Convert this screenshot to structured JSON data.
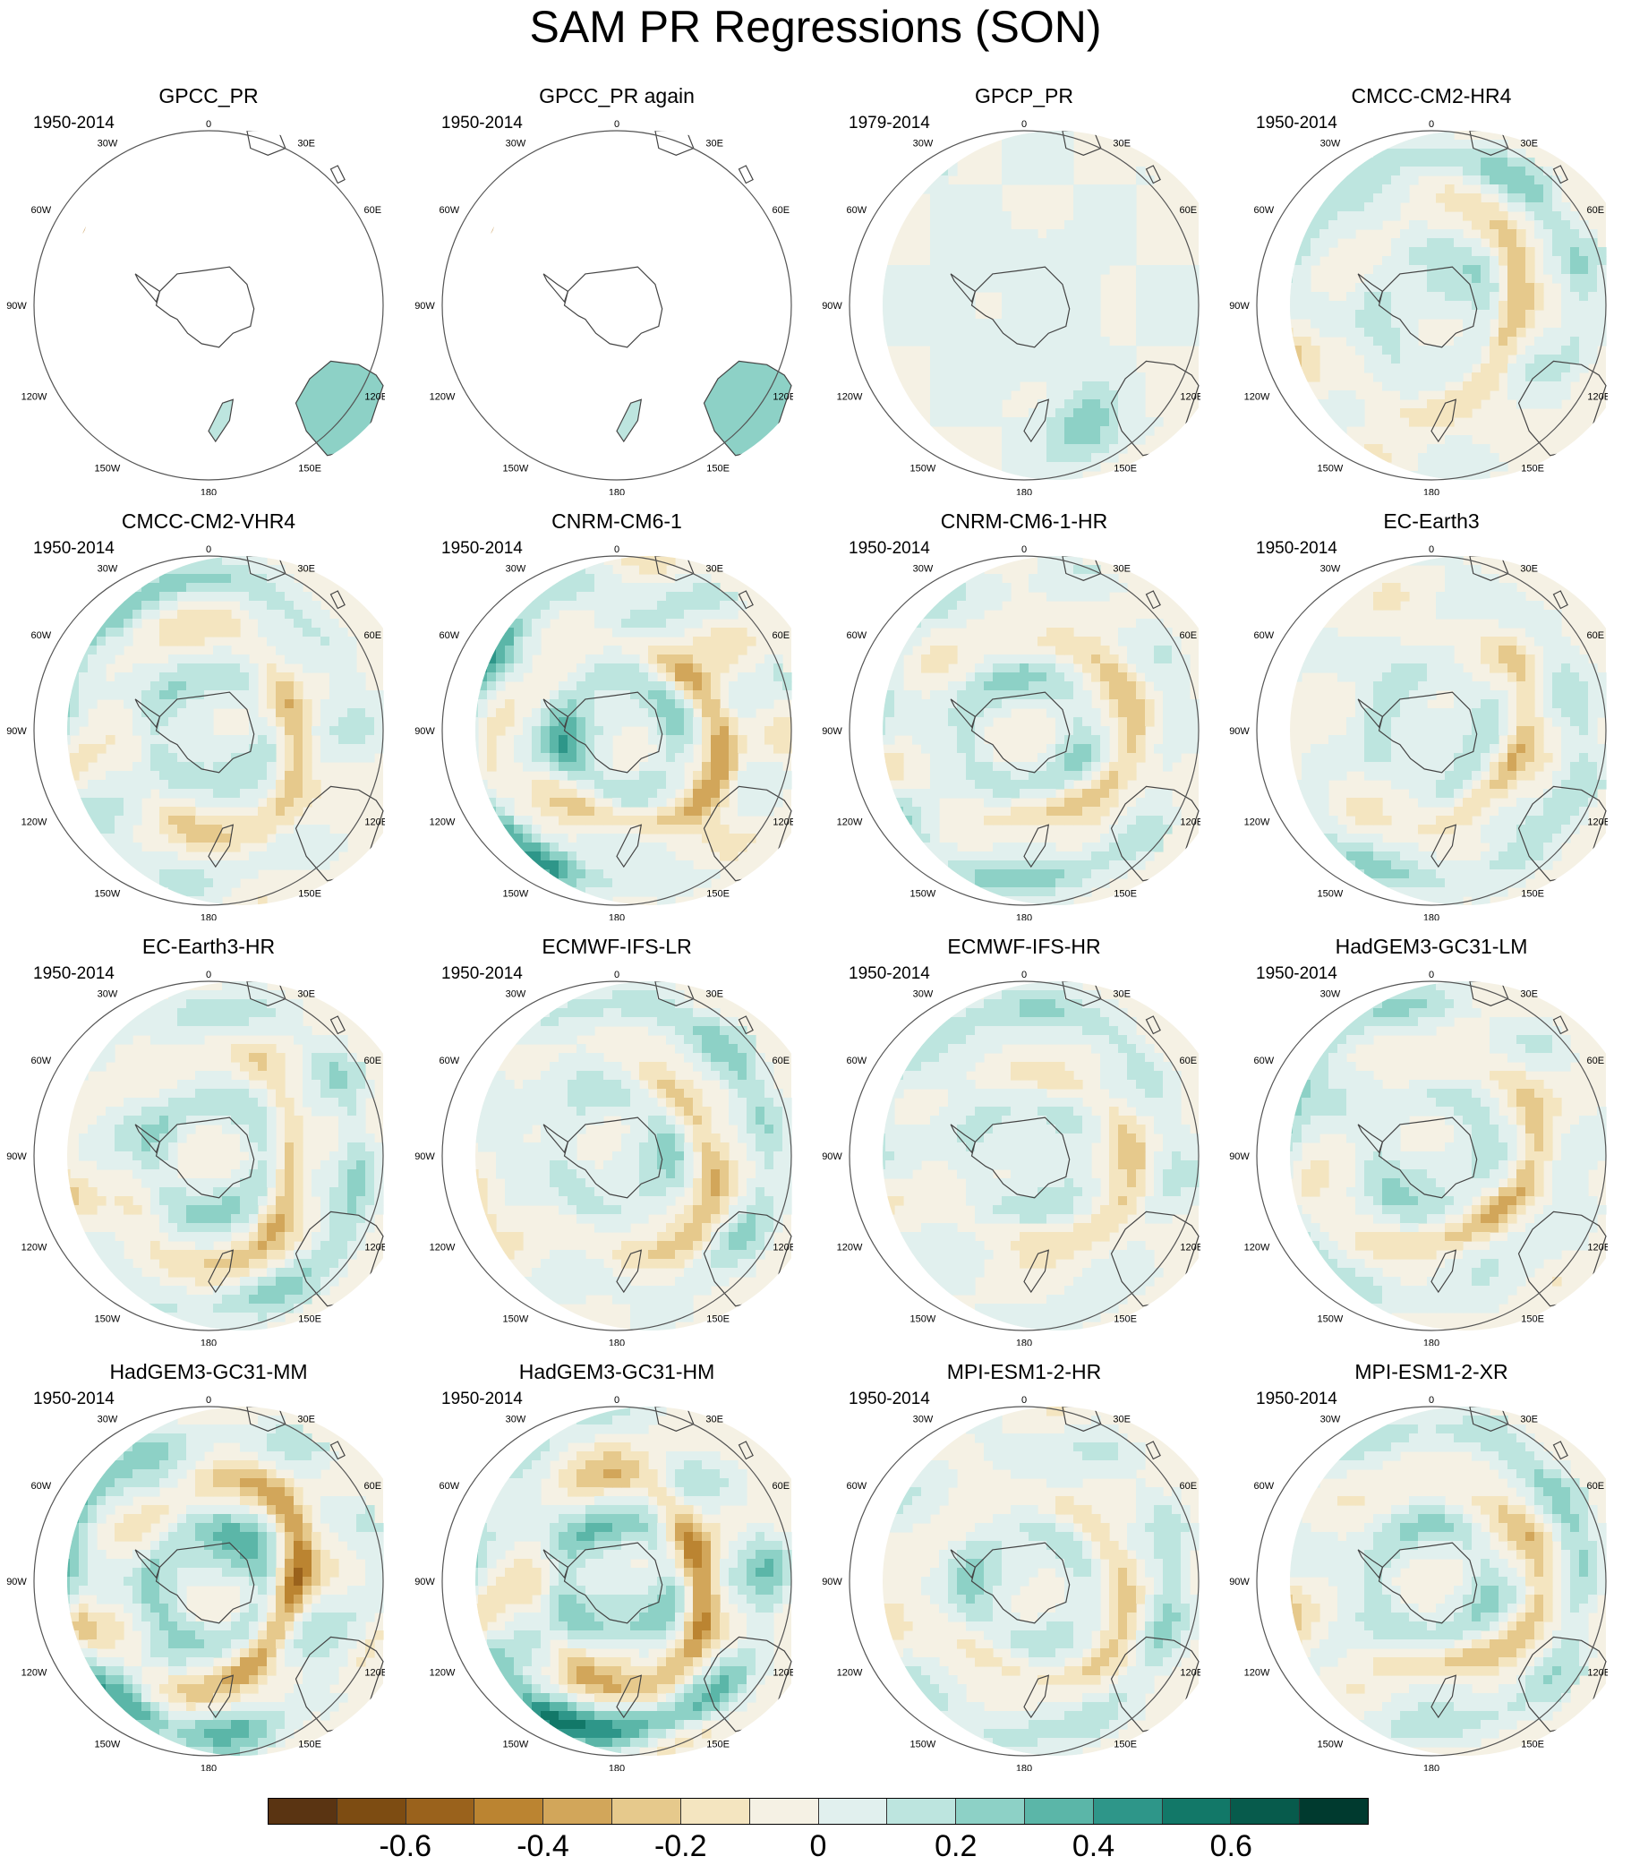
{
  "title": "SAM PR Regressions (SON)",
  "map_labels": {
    "top": "0",
    "top_right": "30E",
    "right_upper": "60E",
    "right": "90E",
    "right_lower": "120E",
    "bottom_right": "150E",
    "bottom": "180",
    "bottom_left": "150W",
    "left_lower": "120W",
    "left": "90W",
    "left_upper": "60W",
    "top_left": "30W"
  },
  "chart_data": {
    "type": "heatmap",
    "title": "SAM PR Regressions (SON)",
    "projection": "south-polar-stereographic",
    "colorbar": {
      "levels": [
        -0.7,
        -0.6,
        -0.5,
        -0.4,
        -0.3,
        -0.2,
        -0.1,
        0,
        0.1,
        0.2,
        0.3,
        0.4,
        0.5,
        0.6,
        0.7
      ],
      "tick_labels": [
        "-0.6",
        "-0.4",
        "-0.2",
        "0",
        "0.2",
        "0.4",
        "0.6"
      ],
      "tick_values": [
        -0.6,
        -0.4,
        -0.2,
        0,
        0.2,
        0.4,
        0.6
      ],
      "colors": [
        "#5a3412",
        "#7d4c12",
        "#9a621c",
        "#bb8431",
        "#d2a65a",
        "#e6c98c",
        "#f4e5c0",
        "#f5f1e4",
        "#e1f0ee",
        "#bde5df",
        "#8dd1c6",
        "#5bb6a8",
        "#2e9689",
        "#127868",
        "#075b4c",
        "#003a2f"
      ]
    },
    "panels": [
      {
        "name": "GPCC_PR",
        "period": "1950-2014",
        "coverage": "land",
        "pattern": "obs"
      },
      {
        "name": "GPCC_PR again",
        "period": "1950-2014",
        "coverage": "land",
        "pattern": "obs"
      },
      {
        "name": "GPCP_PR",
        "period": "1979-2014",
        "coverage": "full",
        "pattern": "gpcp"
      },
      {
        "name": "CMCC-CM2-HR4",
        "period": "1950-2014",
        "coverage": "full",
        "pattern": "model"
      },
      {
        "name": "CMCC-CM2-VHR4",
        "period": "1950-2014",
        "coverage": "full",
        "pattern": "model"
      },
      {
        "name": "CNRM-CM6-1",
        "period": "1950-2014",
        "coverage": "full",
        "pattern": "strong"
      },
      {
        "name": "CNRM-CM6-1-HR",
        "period": "1950-2014",
        "coverage": "full",
        "pattern": "model"
      },
      {
        "name": "EC-Earth3",
        "period": "1950-2014",
        "coverage": "full",
        "pattern": "model"
      },
      {
        "name": "EC-Earth3-HR",
        "period": "1950-2014",
        "coverage": "full",
        "pattern": "model"
      },
      {
        "name": "ECMWF-IFS-LR",
        "period": "1950-2014",
        "coverage": "full",
        "pattern": "model"
      },
      {
        "name": "ECMWF-IFS-HR",
        "period": "1950-2014",
        "coverage": "full",
        "pattern": "weak"
      },
      {
        "name": "HadGEM3-GC31-LM",
        "period": "1950-2014",
        "coverage": "full",
        "pattern": "model"
      },
      {
        "name": "HadGEM3-GC31-MM",
        "period": "1950-2014",
        "coverage": "full",
        "pattern": "strong"
      },
      {
        "name": "HadGEM3-GC31-HM",
        "period": "1950-2014",
        "coverage": "full",
        "pattern": "strong"
      },
      {
        "name": "MPI-ESM1-2-HR",
        "period": "1950-2014",
        "coverage": "full",
        "pattern": "model"
      },
      {
        "name": "MPI-ESM1-2-XR",
        "period": "1950-2014",
        "coverage": "full",
        "pattern": "model"
      }
    ]
  }
}
